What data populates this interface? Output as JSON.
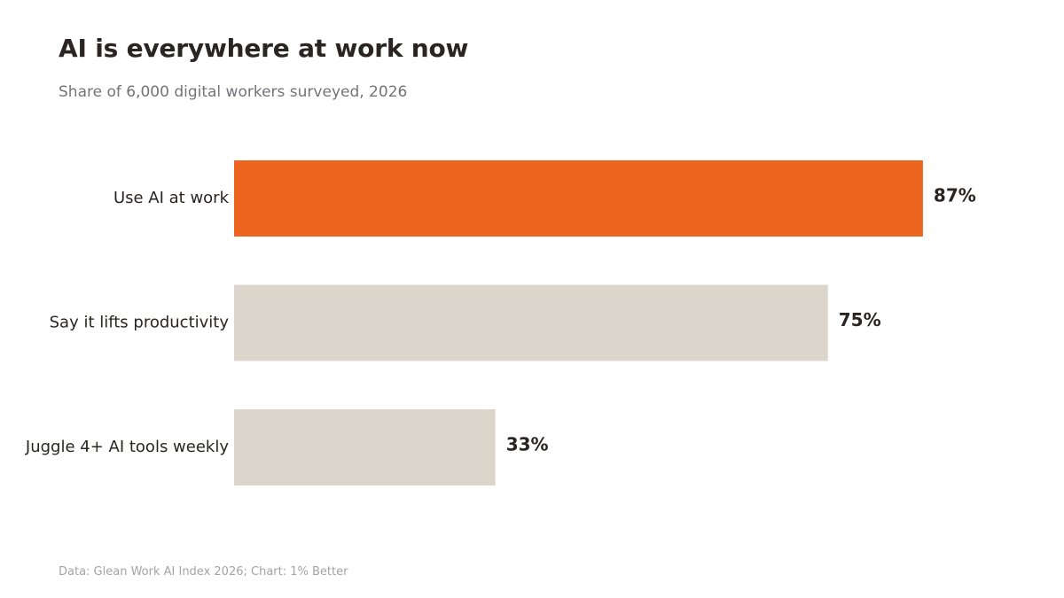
{
  "title": "AI is everywhere at work now",
  "subtitle": "Share of 6,000 digital workers surveyed, 2026",
  "source": "Data: Glean Work AI Index 2026; Chart: 1% Better",
  "chart_data": {
    "type": "bar",
    "orientation": "horizontal",
    "categories": [
      "Use AI at work",
      "Say it lifts productivity",
      "Juggle 4+ AI tools weekly"
    ],
    "values": [
      87,
      75,
      33
    ],
    "value_labels": [
      "87%",
      "75%",
      "33%"
    ],
    "unit": "%",
    "xlim": [
      0,
      100
    ],
    "grid": false,
    "legend": "none",
    "colors": [
      "#ec6520",
      "#dbd5cb",
      "#dbd5cb"
    ],
    "highlight_color": "#ec6520",
    "muted_color": "#dbd5cb",
    "label_color": "#2a2522"
  }
}
